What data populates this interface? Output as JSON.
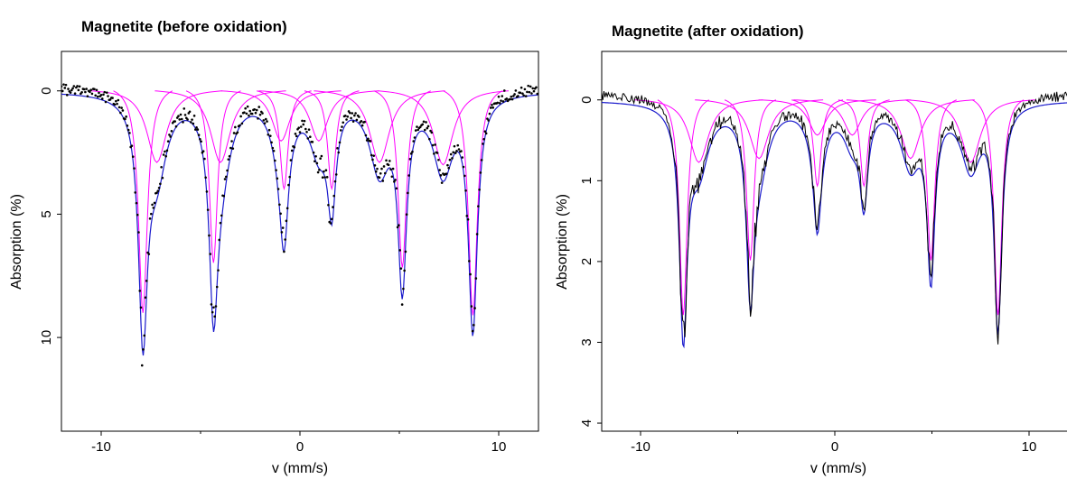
{
  "colors": {
    "data_before": "#000000",
    "data_after": "#000000",
    "fit_total": "#1a1acc",
    "fit_component": "#ff00ff"
  },
  "chart_data": [
    {
      "type": "scatter",
      "title": "Magnetite (before oxidation)",
      "xlabel": "v (mm/s)",
      "ylabel": "Absorption (%)",
      "xlim": [
        -12,
        12
      ],
      "ylim": [
        -1.6,
        13.8
      ],
      "y_inverted": true,
      "grid": false,
      "xticks": [
        -10,
        0,
        10
      ],
      "yticks": [
        0,
        5,
        10
      ],
      "xtick_labels": [
        "-10",
        "0",
        "10"
      ],
      "ytick_labels": [
        "0",
        "5",
        "10"
      ],
      "measurement_style": "dots",
      "baseline": 0.2,
      "sextets": [
        {
          "center": 0.4,
          "half_widths": [
            8.3,
            4.75,
            1.2
          ],
          "lines": [
            {
              "depth": 9.3,
              "width": 0.27
            },
            {
              "depth": 7.2,
              "width": 0.25
            },
            {
              "depth": 4.1,
              "width": 0.25
            },
            {
              "depth": 4.1,
              "width": 0.25
            },
            {
              "depth": 7.4,
              "width": 0.26
            },
            {
              "depth": 9.4,
              "width": 0.27
            }
          ]
        },
        {
          "center": 0.0,
          "half_widths": [
            7.2,
            4.0,
            0.95
          ],
          "lines": [
            {
              "depth": 3.0,
              "width": 0.6
            },
            {
              "depth": 3.0,
              "width": 0.6
            },
            {
              "depth": 2.1,
              "width": 0.55
            },
            {
              "depth": 2.1,
              "width": 0.55
            },
            {
              "depth": 3.0,
              "width": 0.6
            },
            {
              "depth": 3.1,
              "width": 0.6
            }
          ]
        }
      ]
    },
    {
      "type": "line",
      "title": "Magnetite (after oxidation)",
      "xlabel": "v (mm/s)",
      "ylabel": "Absorption (%)",
      "xlim": [
        -12,
        12
      ],
      "ylim": [
        -0.6,
        4.1
      ],
      "y_inverted": true,
      "grid": false,
      "xticks": [
        -10,
        0,
        10
      ],
      "yticks": [
        0,
        1,
        2,
        3,
        4
      ],
      "xtick_labels": [
        "-10",
        "0",
        "10"
      ],
      "ytick_labels": [
        "0",
        "1",
        "2",
        "3",
        "4"
      ],
      "measurement_style": "line",
      "baseline": 0.08,
      "sextets": [
        {
          "center": 0.3,
          "half_widths": [
            8.1,
            4.65,
            1.2
          ],
          "lines": [
            {
              "depth": 2.75,
              "width": 0.24
            },
            {
              "depth": 2.05,
              "width": 0.24
            },
            {
              "depth": 1.1,
              "width": 0.24
            },
            {
              "depth": 1.1,
              "width": 0.24
            },
            {
              "depth": 2.05,
              "width": 0.24
            },
            {
              "depth": 2.75,
              "width": 0.24
            }
          ]
        },
        {
          "center": 0.0,
          "half_widths": [
            7.0,
            3.9,
            0.9
          ],
          "lines": [
            {
              "depth": 0.8,
              "width": 0.6
            },
            {
              "depth": 0.75,
              "width": 0.6
            },
            {
              "depth": 0.45,
              "width": 0.55
            },
            {
              "depth": 0.45,
              "width": 0.55
            },
            {
              "depth": 0.75,
              "width": 0.6
            },
            {
              "depth": 0.8,
              "width": 0.6
            }
          ]
        }
      ]
    }
  ]
}
